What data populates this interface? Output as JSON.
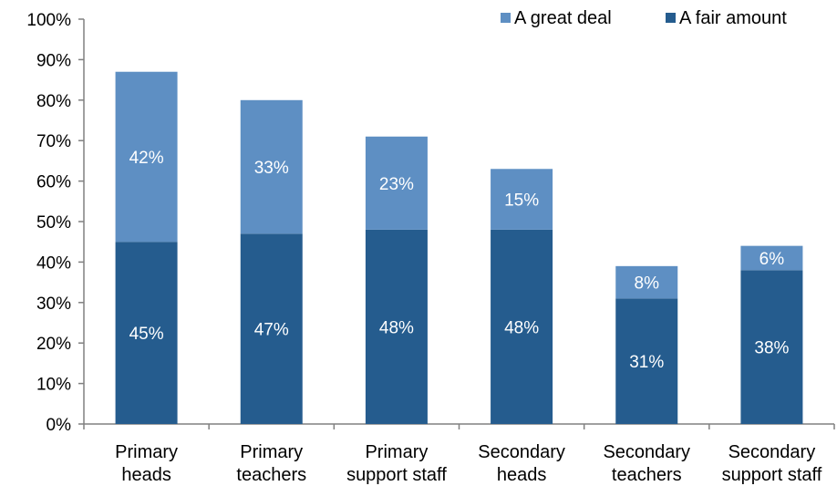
{
  "chart_data": {
    "type": "bar",
    "stacked": true,
    "categories": [
      [
        "Primary",
        "heads"
      ],
      [
        "Primary",
        "teachers"
      ],
      [
        "Primary",
        "support staff"
      ],
      [
        "Secondary",
        "heads"
      ],
      [
        "Secondary",
        "teachers"
      ],
      [
        "Secondary",
        "support staff"
      ]
    ],
    "series": [
      {
        "name": "A fair amount",
        "values": [
          45,
          47,
          48,
          48,
          31,
          38
        ],
        "labels": [
          "45%",
          "47%",
          "48%",
          "48%",
          "31%",
          "38%"
        ],
        "color": "#255C8E"
      },
      {
        "name": "A great deal",
        "values": [
          42,
          33,
          23,
          15,
          8,
          6
        ],
        "labels": [
          "42%",
          "33%",
          "23%",
          "15%",
          "8%",
          "6%"
        ],
        "color": "#5E8FC3"
      }
    ],
    "ylim": [
      0,
      100
    ],
    "yticks": [
      "0%",
      "10%",
      "20%",
      "30%",
      "40%",
      "50%",
      "60%",
      "70%",
      "80%",
      "90%",
      "100%"
    ],
    "legend": {
      "position": "top-right",
      "entries": [
        "A great deal",
        "A fair amount"
      ]
    },
    "grid": false,
    "title": "",
    "xlabel": "",
    "ylabel": ""
  }
}
